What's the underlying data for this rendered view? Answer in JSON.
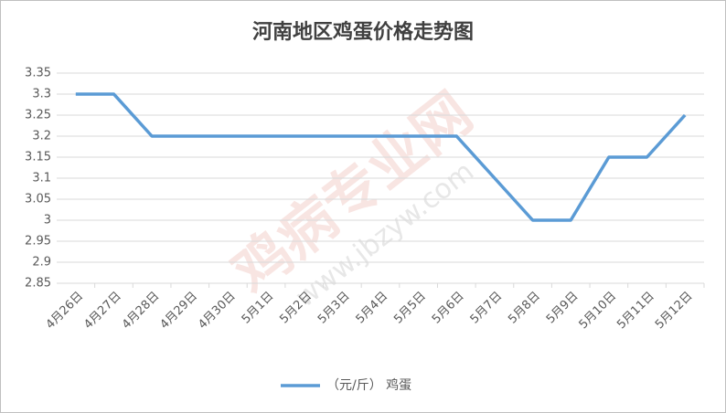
{
  "chart_data": {
    "type": "line",
    "title": "河南地区鸡蛋价格走势图",
    "categories": [
      "4月26日",
      "4月27日",
      "4月28日",
      "4月29日",
      "4月30日",
      "5月1日",
      "5月2日",
      "5月3日",
      "5月4日",
      "5月5日",
      "5月6日",
      "5月7日",
      "5月8日",
      "5月9日",
      "5月10日",
      "5月11日",
      "5月12日"
    ],
    "series": [
      {
        "name": "（元/斤） 鸡蛋",
        "color": "#5b9bd5",
        "values": [
          3.3,
          3.3,
          3.2,
          3.2,
          3.2,
          3.2,
          3.2,
          3.2,
          3.2,
          3.2,
          3.2,
          3.1,
          3.0,
          3.0,
          3.15,
          3.15,
          3.25
        ]
      }
    ],
    "ylim": [
      2.85,
      3.35
    ],
    "yticks": [
      2.85,
      2.9,
      2.95,
      3,
      3.05,
      3.1,
      3.15,
      3.2,
      3.25,
      3.3,
      3.35
    ],
    "grid": true,
    "legend": "bottom",
    "watermark": [
      "鸡病专业网",
      "www.jbzyw.com"
    ]
  }
}
